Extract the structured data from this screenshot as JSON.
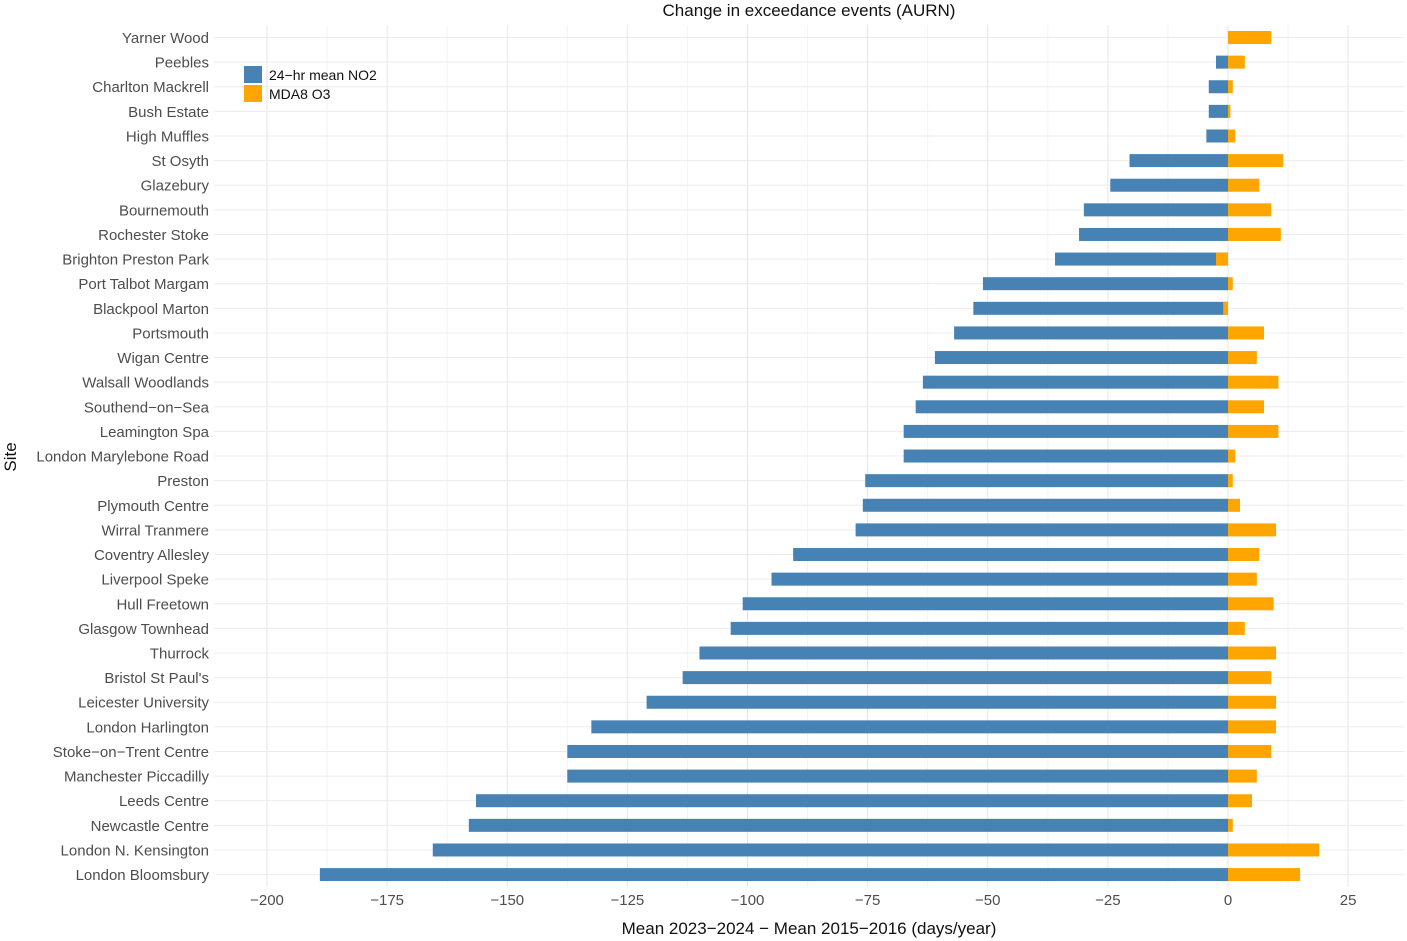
{
  "chart_data": {
    "type": "bar",
    "orientation": "horizontal",
    "title": "Change in exceedance events (AURN)",
    "xlabel": "Mean 2023−2024 − Mean 2015−2016 (days/year)",
    "ylabel": "Site",
    "xlim": [
      -213,
      37
    ],
    "xticks": [
      -200,
      -175,
      -150,
      -125,
      -100,
      -75,
      -50,
      -25,
      0,
      25
    ],
    "xtick_labels": [
      "−200",
      "−175",
      "−150",
      "−125",
      "−100",
      "−75",
      "−50",
      "−25",
      "0",
      "25"
    ],
    "grid": true,
    "legend_position": "top-left",
    "categories": [
      "Yarner Wood",
      "Peebles",
      "Charlton Mackrell",
      "Bush Estate",
      "High Muffles",
      "St Osyth",
      "Glazebury",
      "Bournemouth",
      "Rochester Stoke",
      "Brighton Preston Park",
      "Port Talbot Margam",
      "Blackpool Marton",
      "Portsmouth",
      "Wigan Centre",
      "Walsall Woodlands",
      "Southend−on−Sea",
      "Leamington Spa",
      "London Marylebone Road",
      "Preston",
      "Plymouth Centre",
      "Wirral Tranmere",
      "Coventry Allesley",
      "Liverpool Speke",
      "Hull Freetown",
      "Glasgow Townhead",
      "Thurrock",
      "Bristol St Paul's",
      "Leicester University",
      "London Harlington",
      "Stoke−on−Trent Centre",
      "Manchester Piccadilly",
      "Leeds Centre",
      "Newcastle Centre",
      "London N. Kensington",
      "London Bloomsbury"
    ],
    "series": [
      {
        "name": "24−hr mean NO2",
        "color": "#4682b4",
        "values": [
          0,
          -2.5,
          -4,
          -4,
          -4.5,
          -20.5,
          -24.5,
          -30,
          -31,
          -36,
          -51,
          -53,
          -57,
          -61,
          -63.5,
          -65,
          -67.5,
          -67.5,
          -75.5,
          -76,
          -77.5,
          -90.5,
          -95,
          -101,
          -103.5,
          -110,
          -113.5,
          -121,
          -132.5,
          -137.5,
          -137.5,
          -156.5,
          -158,
          -165.5,
          -189
        ]
      },
      {
        "name": "MDA8 O3",
        "color": "#ffa500",
        "values": [
          9,
          3.5,
          1,
          0.5,
          1.5,
          11.5,
          6.5,
          9,
          11,
          -2.5,
          1,
          -1,
          7.5,
          6,
          10.5,
          7.5,
          10.5,
          1.5,
          1,
          2.5,
          10,
          6.5,
          6,
          9.5,
          3.5,
          10,
          9,
          10,
          10,
          9,
          6,
          5,
          1,
          19,
          15
        ]
      }
    ]
  }
}
